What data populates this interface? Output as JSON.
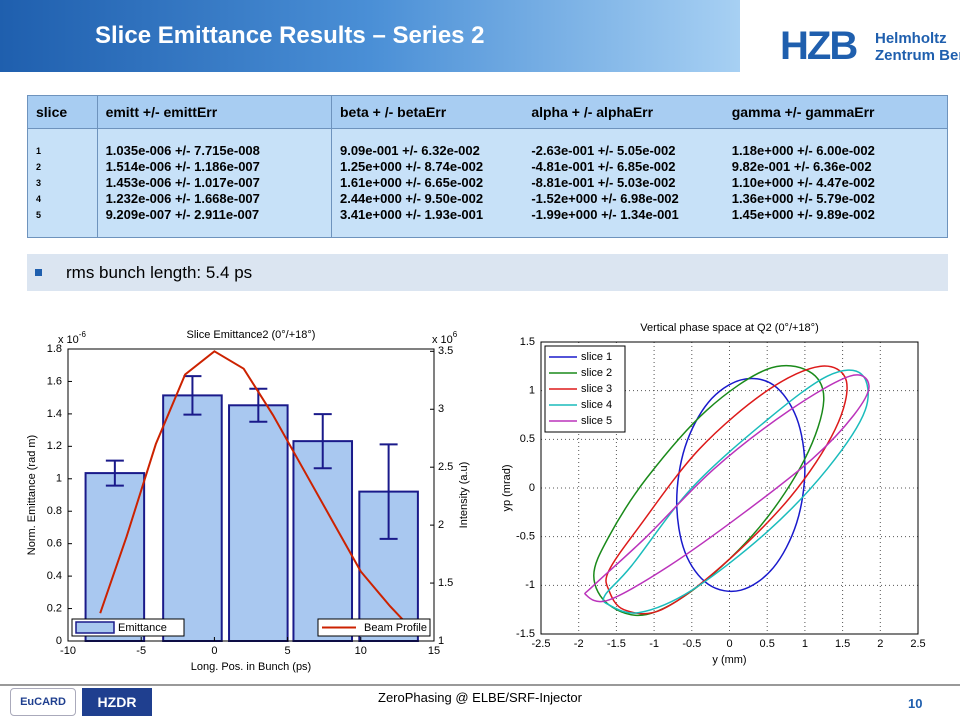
{
  "header": {
    "title": "Slice Emittance Results – Series 2",
    "logo_main": "HZB",
    "logo_line1": "Helmholtz",
    "logo_line2": "Zentrum Berlin"
  },
  "table": {
    "header": [
      "slice",
      "emitt +/- emittErr",
      "beta + /- betaErr",
      "alpha + /- alphaErr",
      "gamma +/- gammaErr"
    ],
    "rows": [
      [
        "1",
        "1.035e-006 +/- 7.715e-008",
        "9.09e-001 +/- 6.32e-002",
        "-2.63e-001 +/- 5.05e-002",
        "1.18e+000 +/- 6.00e-002"
      ],
      [
        "2",
        "1.514e-006 +/- 1.186e-007",
        "1.25e+000 +/- 8.74e-002",
        "-4.81e-001 +/- 6.85e-002",
        "9.82e-001 +/- 6.36e-002"
      ],
      [
        "3",
        "1.453e-006 +/- 1.017e-007",
        "1.61e+000 +/- 6.65e-002",
        "-8.81e-001 +/- 5.03e-002",
        "1.10e+000 +/- 4.47e-002"
      ],
      [
        "4",
        "1.232e-006 +/- 1.668e-007",
        "2.44e+000 +/- 9.50e-002",
        "-1.52e+000 +/- 6.98e-002",
        "1.36e+000 +/- 5.79e-002"
      ],
      [
        "5",
        "9.209e-007 +/- 2.911e-007",
        "3.41e+000 +/- 1.93e-001",
        "-1.99e+000 +/- 1.34e-001",
        "1.45e+000 +/- 9.89e-002"
      ]
    ]
  },
  "bullet": "rms bunch length: 5.4 ps",
  "footer": {
    "text": "ZeroPhasing @ ELBE/SRF-Injector",
    "page": "10",
    "logo_left": "EuCARD",
    "logo_right": "HZDR"
  },
  "chart_data": [
    {
      "type": "bar",
      "title": "Slice Emittance2  (0°/+18°)",
      "xlabel": "Long. Pos. in Bunch (ps)",
      "ylabel": "Norm. Emittance (rad m)",
      "y2label": "Intensity (a.u)",
      "y_multiplier": {
        "base": "x 10",
        "exponent": "-6"
      },
      "y2_multiplier": {
        "base": "x 10",
        "exponent": "6"
      },
      "xlim": [
        -10,
        15
      ],
      "xticks": [
        -10,
        -5,
        0,
        5,
        10,
        15
      ],
      "ylim": [
        0,
        1.8
      ],
      "yticks": [
        0,
        0.2,
        0.4,
        0.6,
        0.8,
        1,
        1.2,
        1.4,
        1.6,
        1.8
      ],
      "y2lim": [
        1,
        3.52
      ],
      "y2ticks": [
        1,
        1.5,
        2,
        2.5,
        3,
        3.5
      ],
      "series": [
        {
          "name": "Emittance",
          "type": "bar",
          "color": "#a9c8f0",
          "x": [
            -6.8,
            -1.5,
            3.0,
            7.4,
            11.9
          ],
          "values": [
            1.035,
            1.514,
            1.453,
            1.232,
            0.9209
          ],
          "errors": [
            0.07715,
            0.1186,
            0.1017,
            0.1668,
            0.2911
          ]
        },
        {
          "name": "Beam Profile",
          "type": "line",
          "axis": "y2",
          "color": "#cc2200",
          "x": [
            -7.8,
            -6,
            -4,
            -2,
            0,
            2,
            4,
            6,
            8,
            10,
            12,
            13.5
          ],
          "values": [
            1.24,
            1.9,
            2.7,
            3.3,
            3.5,
            3.35,
            2.95,
            2.5,
            2.05,
            1.6,
            1.3,
            1.1
          ]
        }
      ]
    },
    {
      "type": "line",
      "title": "Vertical phase space at Q2  (0°/+18°)",
      "xlabel": "y (mm)",
      "ylabel": "yp (mrad)",
      "grid": true,
      "legend": "upper left",
      "xlim": [
        -2.5,
        2.5
      ],
      "xticks": [
        -2.5,
        -2,
        -1.5,
        -1,
        -0.5,
        0,
        0.5,
        1,
        1.5,
        2,
        2.5
      ],
      "ylim": [
        -1.5,
        1.5
      ],
      "yticks": [
        -1.5,
        -1,
        -0.5,
        0,
        0.5,
        1,
        1.5
      ],
      "series": [
        {
          "name": "slice 1",
          "color": "#1a1acc",
          "x": [
            1.0,
            0.89,
            0.58,
            0.15,
            -0.28,
            -0.59,
            -0.7,
            -0.59,
            -0.28,
            0.15,
            0.58,
            0.89
          ],
          "values": [
            0.2,
            0.72,
            1.06,
            1.11,
            0.88,
            0.42,
            -0.14,
            -0.66,
            -0.99,
            -1.05,
            -0.82,
            -0.36
          ]
        },
        {
          "name": "slice 2",
          "color": "#1a8a1a",
          "x": [
            -1.8,
            -1.6,
            -1.1,
            -0.4,
            0.4,
            1.0,
            1.25,
            1.05,
            0.5,
            -0.3,
            -1.1,
            -1.6
          ],
          "values": [
            -0.9,
            -1.2,
            -1.3,
            -1.0,
            -0.4,
            0.3,
            0.9,
            1.2,
            1.22,
            0.8,
            0.1,
            -0.5
          ]
        },
        {
          "name": "slice 3",
          "color": "#dd1a1a",
          "x": [
            -1.6,
            -1.4,
            -0.9,
            -0.1,
            0.8,
            1.4,
            1.55,
            1.2,
            0.5,
            -0.4,
            -1.2,
            -1.6
          ],
          "values": [
            -1.05,
            -1.25,
            -1.25,
            -0.8,
            -0.1,
            0.6,
            1.1,
            1.25,
            1.0,
            0.4,
            -0.4,
            -0.85
          ]
        },
        {
          "name": "slice 4",
          "color": "#1abcbc",
          "x": [
            -1.6,
            -1.2,
            -0.5,
            0.5,
            1.3,
            1.8,
            1.75,
            1.3,
            0.5,
            -0.5,
            -1.3,
            -1.65
          ],
          "values": [
            -1.2,
            -1.28,
            -1.05,
            -0.45,
            0.2,
            0.8,
            1.17,
            1.15,
            0.7,
            0.0,
            -0.8,
            -1.1
          ]
        },
        {
          "name": "slice 5",
          "color": "#bb33bb",
          "x": [
            -1.9,
            -1.6,
            -0.8,
            0.2,
            1.1,
            1.65,
            1.85,
            1.6,
            0.8,
            -0.2,
            -1.1,
            -1.8
          ],
          "values": [
            -1.1,
            -1.15,
            -0.8,
            -0.25,
            0.3,
            0.75,
            1.05,
            1.15,
            0.8,
            0.2,
            -0.5,
            -1.0
          ]
        }
      ]
    }
  ]
}
